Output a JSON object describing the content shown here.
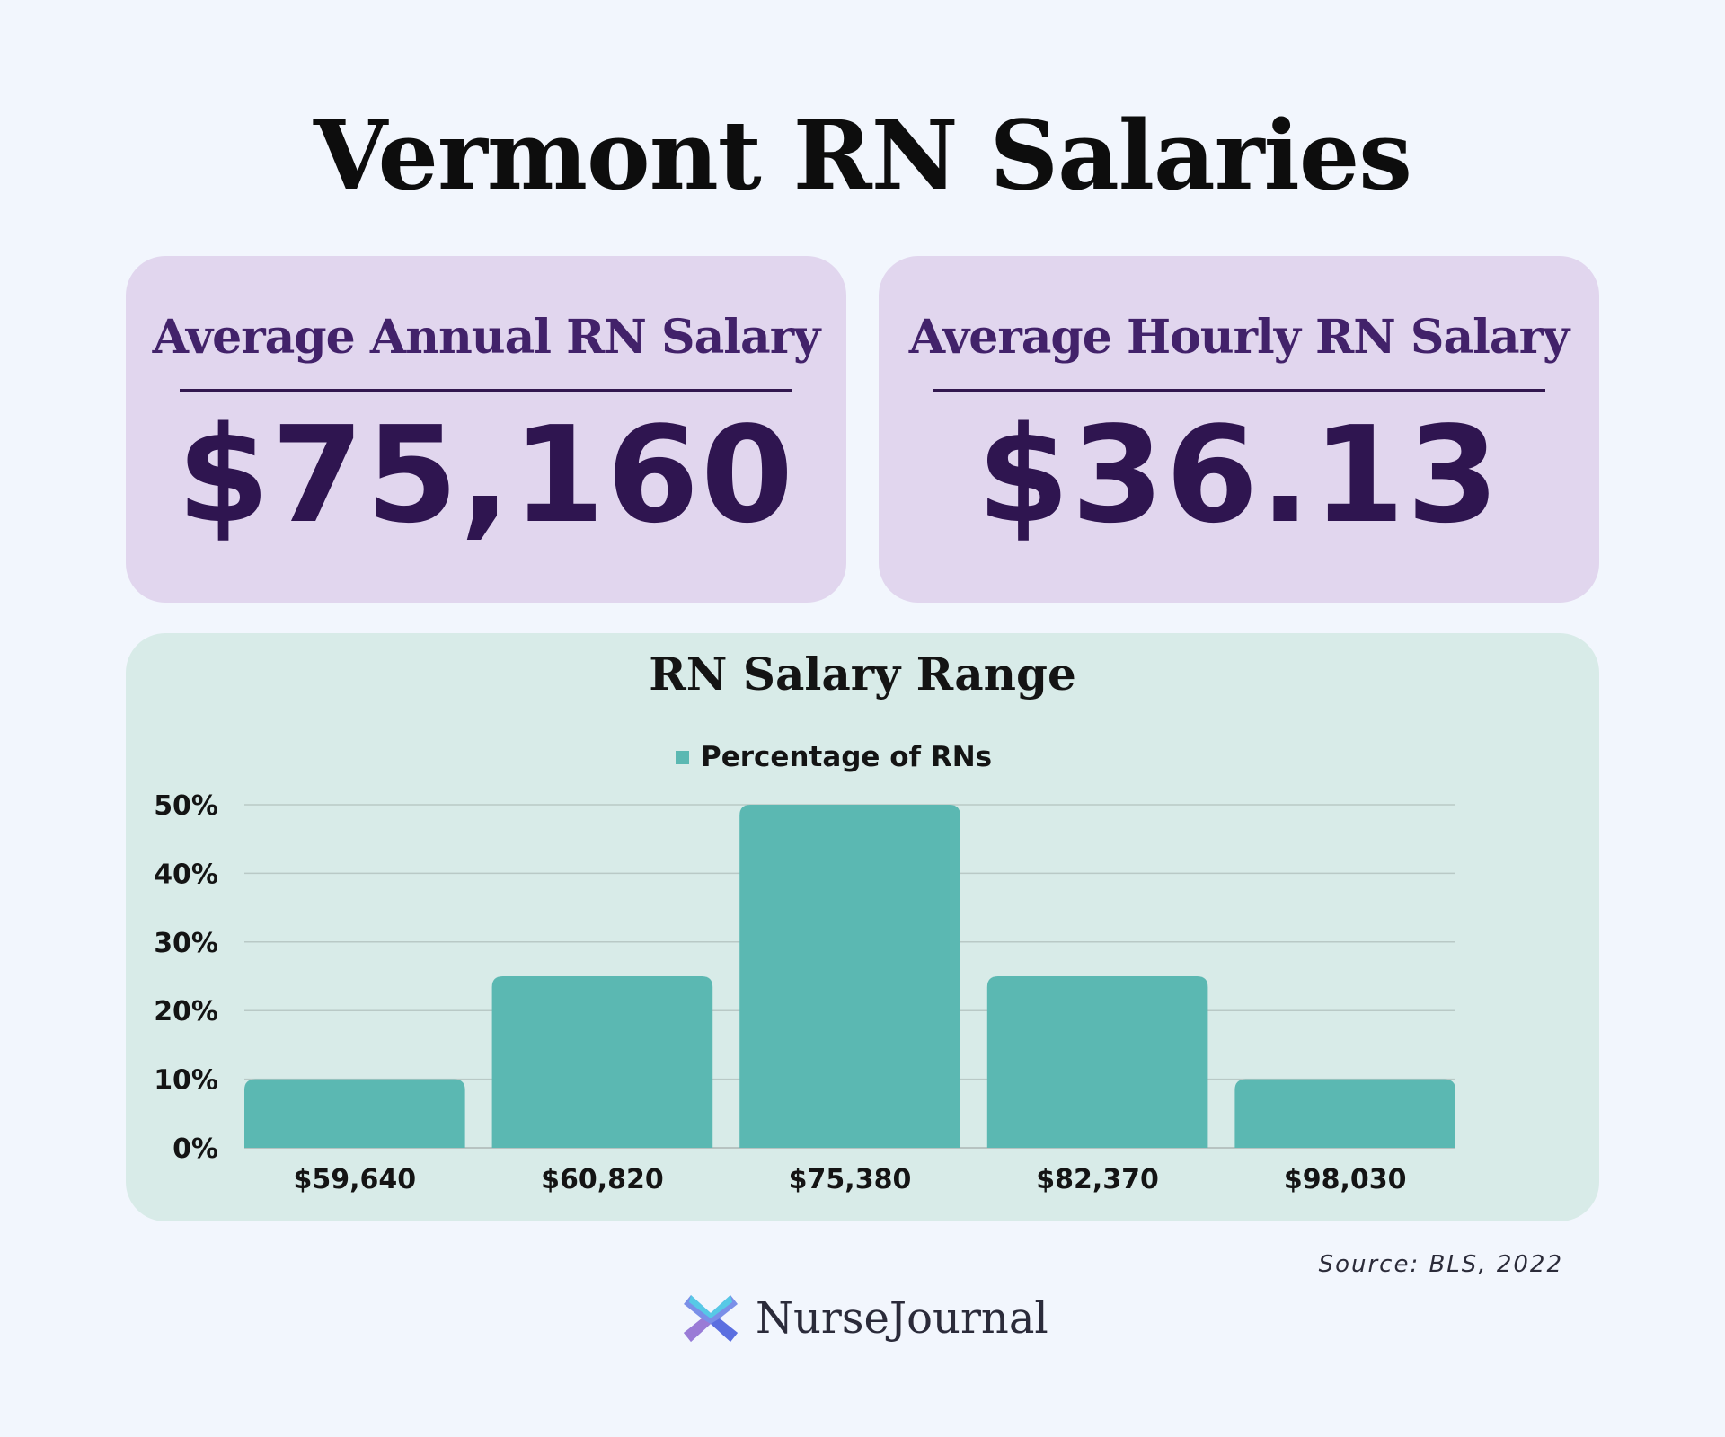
{
  "title": "Vermont RN Salaries",
  "cards": {
    "annual": {
      "label": "Average Annual RN Salary",
      "value": "$75,160"
    },
    "hourly": {
      "label": "Average Hourly RN Salary",
      "value": "$36.13"
    }
  },
  "colors": {
    "background": "#f2f6fd",
    "card": "#e1d6ee",
    "card_text": "#42226a",
    "value_text": "#2f1550",
    "chart_panel": "#d8ebe8",
    "bar": "#5bb8b2"
  },
  "chart_data": {
    "type": "bar",
    "title": "RN Salary Range",
    "categories": [
      "$59,640",
      "$60,820",
      "$75,380",
      "$82,370",
      "$98,030"
    ],
    "series": [
      {
        "name": "Percentage of RNs",
        "values": [
          10,
          25,
          50,
          25,
          10
        ]
      }
    ],
    "ylim": [
      0,
      50
    ],
    "yticks": [
      0,
      10,
      20,
      30,
      40,
      50
    ],
    "yticklabels": [
      "0%",
      "10%",
      "20%",
      "30%",
      "40%",
      "50%"
    ],
    "xlabel": "",
    "ylabel": "",
    "grid": true,
    "legend": "top-center"
  },
  "source": "Source: BLS, 2022",
  "brand": {
    "name": "NurseJournal",
    "icon": "nursejournal-logo-icon"
  }
}
